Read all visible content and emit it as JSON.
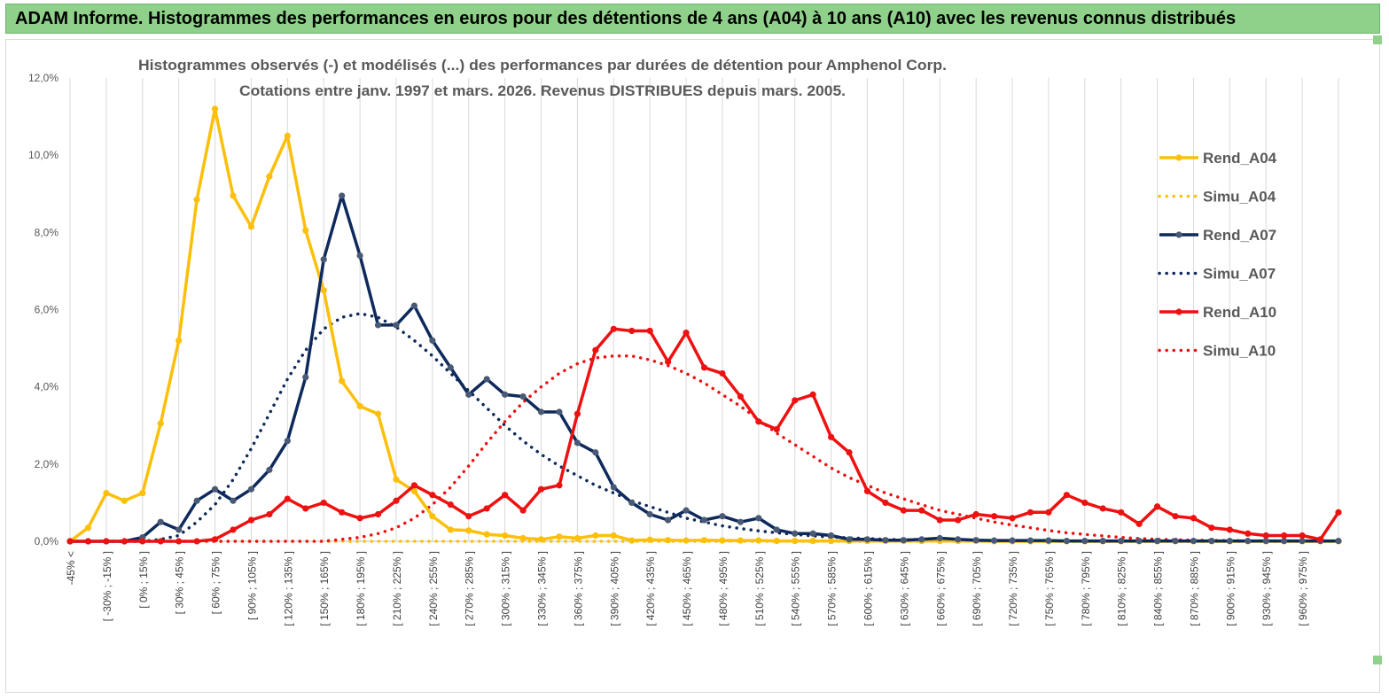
{
  "banner": "ADAM Informe. Histogrammes des performances en euros pour des détentions de 4 ans (A04) à 10 ans (A10) avec les revenus connus distribués",
  "chart_data": {
    "type": "line",
    "title": "Histogrammes observés (-) et modélisés (...) des performances par durées de détention pour Amphenol Corp.",
    "subtitle": "Cotations entre janv. 1997 et mars. 2026.  Revenus DISTRIBUES depuis mars. 2005.",
    "yticks": [
      "0,0%",
      "2,0%",
      "4,0%",
      "6,0%",
      "8,0%",
      "10,0%",
      "12,0%"
    ],
    "ylim": [
      0,
      12
    ],
    "grid": "vertical",
    "legend_position": "right",
    "x_labels": [
      "-45% <",
      "[ -30% ; -15% ]",
      "[ 0% ; 15% ]",
      "[ 30% ; 45% ]",
      "[ 60% ; 75% ]",
      "[ 90% ; 105% ]",
      "[ 120% ; 135% ]",
      "[ 150% ; 165% ]",
      "[ 180% ; 195% ]",
      "[ 210% ; 225% ]",
      "[ 240% ; 255% ]",
      "[ 270% ; 285% ]",
      "[ 300% ; 315% ]",
      "[ 330% ; 345% ]",
      "[ 360% ; 375% ]",
      "[ 390% ; 405% ]",
      "[ 420% ; 435% ]",
      "[ 450% ; 465% ]",
      "[ 480% ; 495% ]",
      "[ 510% ; 525% ]",
      "[ 540% ; 555% ]",
      "[ 570% ; 585% ]",
      "[ 600% ; 615% ]",
      "[ 630% ; 645% ]",
      "[ 660% ; 675% ]",
      "[ 690% ; 705% ]",
      "[ 720% ; 735% ]",
      "[ 750% ; 765% ]",
      "[ 780% ; 795% ]",
      "[ 810% ; 825% ]",
      "[ 840% ; 855% ]",
      "[ 870% ; 885% ]",
      "[ 900% ; 915% ]",
      "[ 930% ; 945% ]",
      "[ 960% ; 975% ]"
    ],
    "series": [
      {
        "name": "Rend_A04",
        "color": "#fcbf0a",
        "style": "solid",
        "values": [
          0,
          0.35,
          1.25,
          1.05,
          1.25,
          3.05,
          5.2,
          8.85,
          11.2,
          8.95,
          8.15,
          9.45,
          10.5,
          8.05,
          6.5,
          4.15,
          3.5,
          3.3,
          1.6,
          1.3,
          0.65,
          0.3,
          0.28,
          0.18,
          0.15,
          0.08,
          0.05,
          0.12,
          0.08,
          0.15,
          0.15,
          0.02,
          0.04,
          0.03,
          0.02,
          0.03,
          0.02,
          0.02,
          0.02,
          0.01,
          0.01,
          0.01,
          0.01,
          0.01,
          0.01,
          0.01,
          0.01,
          0.01,
          0.01,
          0.01,
          0.01,
          0,
          0,
          0,
          0,
          0,
          0,
          0,
          0,
          0,
          0,
          0,
          0,
          0,
          0,
          0,
          0,
          0,
          0,
          0,
          0
        ]
      },
      {
        "name": "Simu_A04",
        "color": "#fcbf0a",
        "style": "dotted",
        "values": [
          0,
          0,
          0,
          0,
          0,
          0,
          0,
          0,
          0,
          0,
          0,
          0,
          0,
          0,
          0,
          0,
          0,
          0,
          0,
          0,
          0,
          0,
          0,
          0,
          0,
          0,
          0,
          0,
          0,
          0,
          0,
          0,
          0,
          0,
          0,
          0,
          0,
          0,
          0,
          0,
          0,
          0,
          0,
          0,
          0,
          0,
          0,
          0,
          0,
          0,
          0,
          0,
          0,
          0,
          0,
          0,
          0,
          0,
          0,
          0,
          0,
          0,
          0,
          0,
          0,
          0,
          0,
          0,
          0,
          0,
          0
        ]
      },
      {
        "name": "Rend_A07",
        "color": "#0e2a5c",
        "style": "solid",
        "values": [
          0,
          0,
          0,
          0,
          0.1,
          0.5,
          0.3,
          1.05,
          1.35,
          1.05,
          1.35,
          1.85,
          2.6,
          4.25,
          7.3,
          8.95,
          7.4,
          5.6,
          5.6,
          6.1,
          5.2,
          4.5,
          3.8,
          4.2,
          3.8,
          3.75,
          3.35,
          3.35,
          2.55,
          2.3,
          1.4,
          1.0,
          0.7,
          0.55,
          0.8,
          0.55,
          0.65,
          0.5,
          0.6,
          0.3,
          0.2,
          0.2,
          0.15,
          0.05,
          0.05,
          0.03,
          0.03,
          0.05,
          0.08,
          0.05,
          0.03,
          0.02,
          0.02,
          0.02,
          0.02,
          0.01,
          0.01,
          0.01,
          0.01,
          0.01,
          0.01,
          0.01,
          0.01,
          0.01,
          0.01,
          0.01,
          0.01,
          0.01,
          0.01,
          0.01,
          0.01
        ]
      },
      {
        "name": "Simu_A07",
        "color": "#0e2a5c",
        "style": "dotted",
        "values": [
          0,
          0,
          0,
          0,
          0,
          0.05,
          0.15,
          0.5,
          0.95,
          1.6,
          2.4,
          3.3,
          4.2,
          4.95,
          5.5,
          5.8,
          5.9,
          5.8,
          5.55,
          5.2,
          4.8,
          4.35,
          3.9,
          3.45,
          3.0,
          2.6,
          2.25,
          1.95,
          1.7,
          1.45,
          1.25,
          1.05,
          0.9,
          0.75,
          0.6,
          0.5,
          0.4,
          0.33,
          0.27,
          0.22,
          0.18,
          0.14,
          0.11,
          0.09,
          0.07,
          0.05,
          0.04,
          0.03,
          0.02,
          0.02,
          0.01,
          0.01,
          0.01,
          0.01,
          0,
          0,
          0,
          0,
          0,
          0,
          0,
          0,
          0,
          0,
          0,
          0,
          0,
          0,
          0,
          0,
          0
        ]
      },
      {
        "name": "Rend_A10",
        "color": "#ee1111",
        "style": "solid",
        "values": [
          0,
          0,
          0,
          0,
          0,
          0,
          0,
          0,
          0.05,
          0.3,
          0.55,
          0.7,
          1.1,
          0.85,
          1.0,
          0.75,
          0.6,
          0.7,
          1.05,
          1.45,
          1.2,
          0.95,
          0.65,
          0.85,
          1.2,
          0.8,
          1.35,
          1.45,
          3.3,
          4.95,
          5.5,
          5.45,
          5.45,
          4.65,
          5.4,
          4.5,
          4.35,
          3.75,
          3.1,
          2.9,
          3.65,
          3.8,
          2.7,
          2.3,
          1.3,
          1.0,
          0.8,
          0.8,
          0.55,
          0.55,
          0.7,
          0.65,
          0.6,
          0.75,
          0.75,
          1.2,
          1.0,
          0.85,
          0.75,
          0.45,
          0.9,
          0.65,
          0.6,
          0.35,
          0.3,
          0.2,
          0.15,
          0.15,
          0.15,
          0.05,
          0.75
        ]
      },
      {
        "name": "Simu_A10",
        "color": "#ee1111",
        "style": "dotted",
        "values": [
          0,
          0,
          0,
          0,
          0,
          0,
          0,
          0,
          0,
          0,
          0,
          0,
          0,
          0,
          0,
          0.05,
          0.1,
          0.2,
          0.35,
          0.6,
          0.95,
          1.4,
          1.95,
          2.55,
          3.1,
          3.6,
          4.0,
          4.35,
          4.6,
          4.75,
          4.8,
          4.8,
          4.7,
          4.55,
          4.35,
          4.1,
          3.8,
          3.5,
          3.15,
          2.8,
          2.5,
          2.2,
          1.9,
          1.65,
          1.45,
          1.25,
          1.1,
          0.95,
          0.8,
          0.7,
          0.6,
          0.5,
          0.42,
          0.35,
          0.28,
          0.22,
          0.18,
          0.14,
          0.1,
          0.07,
          0.05,
          0.04,
          0.03,
          0.02,
          0.02,
          0.01,
          0.01,
          0.01,
          0.01,
          0.01,
          0
        ]
      }
    ]
  }
}
